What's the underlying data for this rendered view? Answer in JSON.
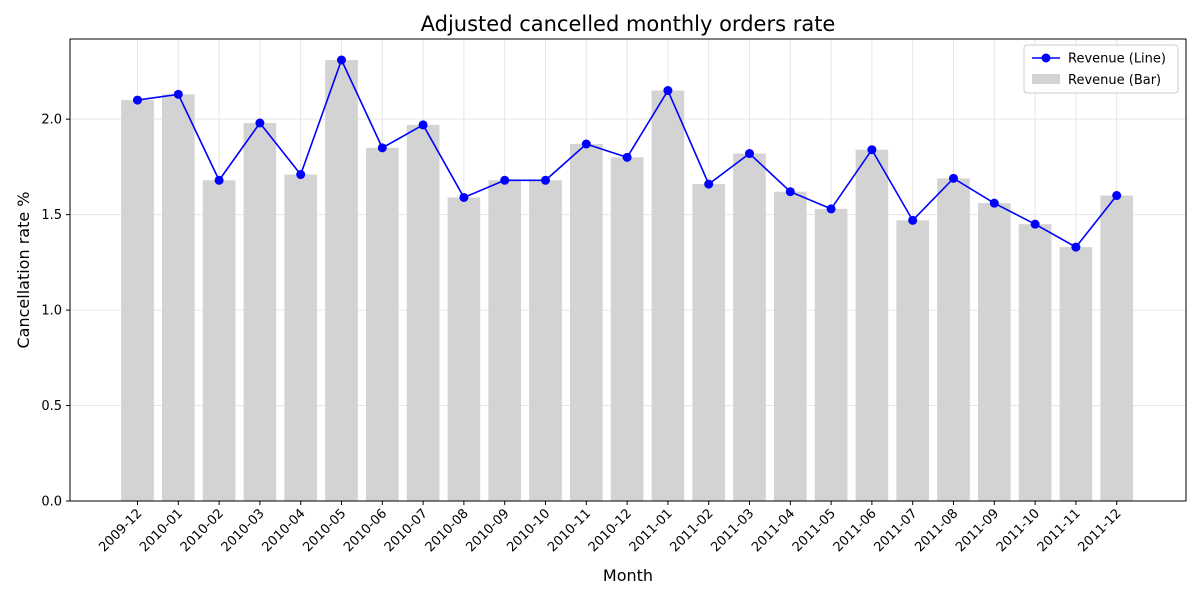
{
  "chart_data": {
    "type": "bar",
    "title": "Adjusted cancelled monthly orders rate",
    "xlabel": "Month",
    "ylabel": "Cancellation rate %",
    "ylim": [
      0,
      2.42
    ],
    "yticks": [
      "0.0",
      "0.5",
      "1.0",
      "1.5",
      "2.0"
    ],
    "grid": true,
    "legend_position": "top-right",
    "categories": [
      "2009-12",
      "2010-01",
      "2010-02",
      "2010-03",
      "2010-04",
      "2010-05",
      "2010-06",
      "2010-07",
      "2010-08",
      "2010-09",
      "2010-10",
      "2010-11",
      "2010-12",
      "2011-01",
      "2011-02",
      "2011-03",
      "2011-04",
      "2011-05",
      "2011-06",
      "2011-07",
      "2011-08",
      "2011-09",
      "2011-10",
      "2011-11",
      "2011-12"
    ],
    "series": [
      {
        "name": "Revenue (Line)",
        "kind": "line",
        "color": "#0000ff",
        "values": [
          2.1,
          2.13,
          1.68,
          1.98,
          1.71,
          2.31,
          1.85,
          1.97,
          1.59,
          1.68,
          1.68,
          1.87,
          1.8,
          2.15,
          1.66,
          1.82,
          1.62,
          1.53,
          1.84,
          1.47,
          1.69,
          1.56,
          1.45,
          1.33,
          1.6
        ]
      },
      {
        "name": "Revenue (Bar)",
        "kind": "bar",
        "color": "#d3d3d3",
        "values": [
          2.1,
          2.13,
          1.68,
          1.98,
          1.71,
          2.31,
          1.85,
          1.97,
          1.59,
          1.68,
          1.68,
          1.87,
          1.8,
          2.15,
          1.66,
          1.82,
          1.62,
          1.53,
          1.84,
          1.47,
          1.69,
          1.56,
          1.45,
          1.33,
          1.6
        ]
      }
    ]
  }
}
